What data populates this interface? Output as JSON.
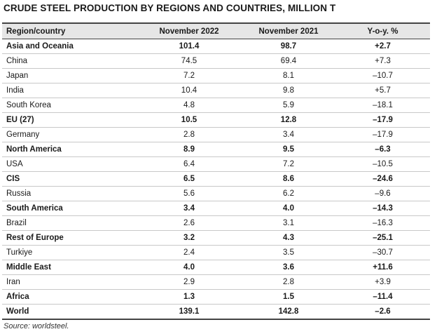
{
  "title": "CRUDE STEEL PRODUCTION BY REGIONS AND COUNTRIES, MILLION T",
  "table": {
    "headers": [
      "Region/country",
      "November 2022",
      "November 2021",
      "Y-o-y. %"
    ],
    "rows": [
      {
        "name": "Asia and Oceania",
        "nov2022": "101.4",
        "nov2021": "98.7",
        "yoy": "+2.7",
        "bold": true
      },
      {
        "name": "China",
        "nov2022": "74.5",
        "nov2021": "69.4",
        "yoy": "+7.3",
        "bold": false
      },
      {
        "name": "Japan",
        "nov2022": "7.2",
        "nov2021": "8.1",
        "yoy": "–10.7",
        "bold": false
      },
      {
        "name": "India",
        "nov2022": "10.4",
        "nov2021": "9.8",
        "yoy": "+5.7",
        "bold": false
      },
      {
        "name": "South Korea",
        "nov2022": "4.8",
        "nov2021": "5.9",
        "yoy": "–18.1",
        "bold": false
      },
      {
        "name": "EU (27)",
        "nov2022": "10.5",
        "nov2021": "12.8",
        "yoy": "–17.9",
        "bold": true
      },
      {
        "name": "Germany",
        "nov2022": "2.8",
        "nov2021": "3.4",
        "yoy": "–17.9",
        "bold": false
      },
      {
        "name": "North America",
        "nov2022": "8.9",
        "nov2021": "9.5",
        "yoy": "–6.3",
        "bold": true
      },
      {
        "name": "USA",
        "nov2022": "6.4",
        "nov2021": "7.2",
        "yoy": "–10.5",
        "bold": false
      },
      {
        "name": "CIS",
        "nov2022": "6.5",
        "nov2021": "8.6",
        "yoy": "–24.6",
        "bold": true
      },
      {
        "name": "Russia",
        "nov2022": "5.6",
        "nov2021": "6.2",
        "yoy": "–9.6",
        "bold": false
      },
      {
        "name": "South America",
        "nov2022": "3.4",
        "nov2021": "4.0",
        "yoy": "–14.3",
        "bold": true
      },
      {
        "name": "Brazil",
        "nov2022": "2.6",
        "nov2021": "3.1",
        "yoy": "–16.3",
        "bold": false
      },
      {
        "name": "Rest of Europe",
        "nov2022": "3.2",
        "nov2021": "4.3",
        "yoy": "–25.1",
        "bold": true
      },
      {
        "name": "Turkiye",
        "nov2022": "2.4",
        "nov2021": "3.5",
        "yoy": "–30.7",
        "bold": false
      },
      {
        "name": "Middle East",
        "nov2022": "4.0",
        "nov2021": "3.6",
        "yoy": "+11.6",
        "bold": true
      },
      {
        "name": "Iran",
        "nov2022": "2.9",
        "nov2021": "2.8",
        "yoy": "+3.9",
        "bold": false
      },
      {
        "name": "Africa",
        "nov2022": "1.3",
        "nov2021": "1.5",
        "yoy": "–11.4",
        "bold": true
      },
      {
        "name": "World",
        "nov2022": "139.1",
        "nov2021": "142.8",
        "yoy": "–2.6",
        "bold": true
      }
    ]
  },
  "source": "Source: worldsteel."
}
